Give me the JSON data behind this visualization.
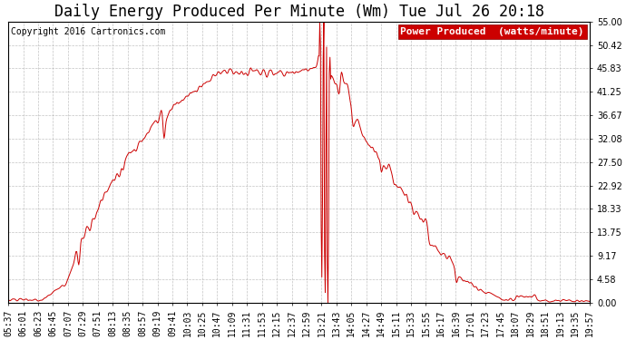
{
  "title": "Daily Energy Produced Per Minute (Wm) Tue Jul 26 20:18",
  "copyright": "Copyright 2016 Cartronics.com",
  "legend_label": "Power Produced  (watts/minute)",
  "legend_bg": "#cc0000",
  "legend_text_color": "#ffffff",
  "line_color": "#cc0000",
  "bg_color": "#ffffff",
  "plot_bg_color": "#ffffff",
  "grid_color": "#aaaaaa",
  "title_color": "#000000",
  "copyright_color": "#000000",
  "yticks": [
    0.0,
    4.58,
    9.17,
    13.75,
    18.33,
    22.92,
    27.5,
    32.08,
    36.67,
    41.25,
    45.83,
    50.42,
    55.0
  ],
  "ylim": [
    0,
    55.0
  ],
  "xtick_labels": [
    "05:37",
    "06:01",
    "06:23",
    "06:45",
    "07:07",
    "07:29",
    "07:51",
    "08:13",
    "08:35",
    "08:57",
    "09:19",
    "09:41",
    "10:03",
    "10:25",
    "10:47",
    "11:09",
    "11:31",
    "11:53",
    "12:15",
    "12:37",
    "12:59",
    "13:21",
    "13:43",
    "14:05",
    "14:27",
    "14:49",
    "15:11",
    "15:33",
    "15:55",
    "16:17",
    "16:39",
    "17:01",
    "17:23",
    "17:45",
    "18:07",
    "18:29",
    "18:51",
    "19:13",
    "19:35",
    "19:57"
  ],
  "title_fontsize": 12,
  "copyright_fontsize": 7,
  "tick_fontsize": 7,
  "legend_fontsize": 8
}
